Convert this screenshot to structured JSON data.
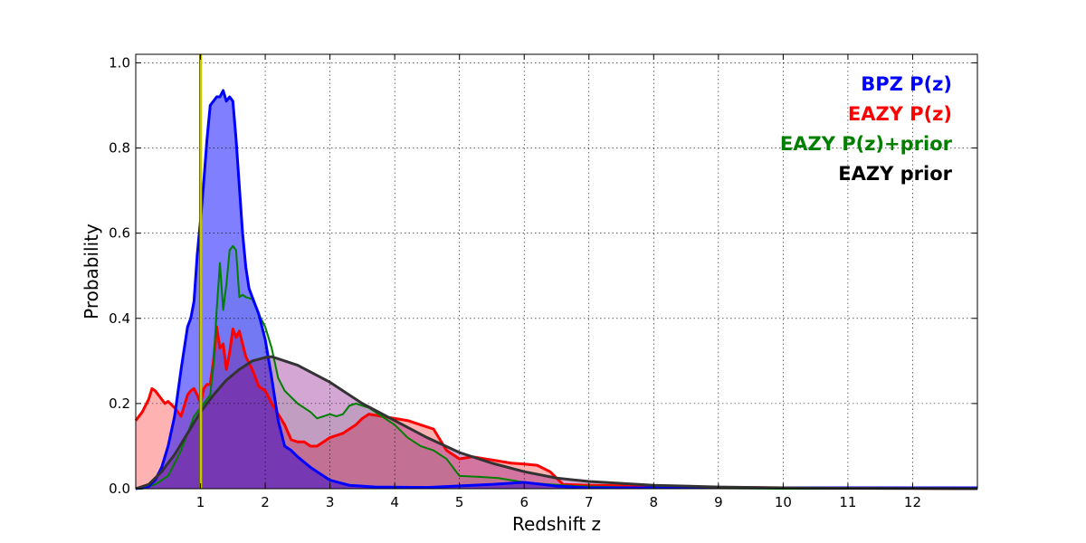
{
  "chart_data": {
    "type": "area",
    "xlabel": "Redshift z",
    "ylabel": "Probability",
    "xlim": [
      0,
      13
    ],
    "ylim": [
      0,
      1.02
    ],
    "xticks": [
      1,
      2,
      3,
      4,
      5,
      6,
      7,
      8,
      9,
      10,
      11,
      12
    ],
    "yticks": [
      0.0,
      0.2,
      0.4,
      0.6,
      0.8,
      1.0
    ],
    "ytick_labels": [
      "0.0",
      "0.2",
      "0.4",
      "0.6",
      "0.8",
      "1.0"
    ],
    "grid": true,
    "legend_placement": "top-right",
    "vline": {
      "x": 1.0,
      "color": "#c8c800"
    },
    "series": [
      {
        "name": "BPZ P(z)",
        "color": "#0000ff",
        "fill": "rgba(0,0,255,0.5)",
        "x": [
          0,
          0.2,
          0.3,
          0.4,
          0.5,
          0.6,
          0.7,
          0.8,
          0.85,
          0.9,
          0.95,
          1.0,
          1.05,
          1.1,
          1.15,
          1.2,
          1.25,
          1.3,
          1.35,
          1.4,
          1.45,
          1.5,
          1.55,
          1.6,
          1.65,
          1.7,
          1.75,
          1.8,
          1.9,
          2.0,
          2.1,
          2.2,
          2.3,
          2.4,
          2.5,
          2.7,
          3.0,
          3.3,
          3.7,
          4.5,
          5.5,
          6.0,
          6.5,
          7.0,
          9.0,
          12.0,
          13.0
        ],
        "y": [
          0.0,
          0.005,
          0.02,
          0.05,
          0.1,
          0.17,
          0.28,
          0.38,
          0.4,
          0.44,
          0.55,
          0.63,
          0.72,
          0.82,
          0.9,
          0.91,
          0.92,
          0.92,
          0.935,
          0.91,
          0.92,
          0.91,
          0.82,
          0.71,
          0.6,
          0.52,
          0.47,
          0.45,
          0.41,
          0.35,
          0.26,
          0.16,
          0.1,
          0.09,
          0.075,
          0.05,
          0.02,
          0.008,
          0.004,
          0.003,
          0.01,
          0.015,
          0.006,
          0.002,
          0.002,
          0.002,
          0.002
        ]
      },
      {
        "name": "EAZY P(z)",
        "color": "#ff0000",
        "fill": "rgba(255,0,0,0.3)",
        "x": [
          0,
          0.1,
          0.2,
          0.25,
          0.3,
          0.35,
          0.45,
          0.5,
          0.6,
          0.7,
          0.8,
          0.85,
          0.9,
          0.95,
          1.0,
          1.05,
          1.1,
          1.15,
          1.2,
          1.25,
          1.3,
          1.35,
          1.4,
          1.45,
          1.5,
          1.55,
          1.6,
          1.7,
          1.8,
          1.9,
          2.0,
          2.1,
          2.2,
          2.3,
          2.4,
          2.5,
          2.6,
          2.7,
          2.8,
          2.9,
          3.0,
          3.2,
          3.4,
          3.5,
          3.6,
          3.8,
          4.0,
          4.2,
          4.4,
          4.6,
          4.8,
          5.0,
          5.2,
          5.4,
          5.6,
          5.8,
          6.0,
          6.2,
          6.4,
          6.6,
          6.8,
          7.0,
          8.0,
          9.0,
          10.0,
          11.0,
          12.0,
          13.0
        ],
        "y": [
          0.16,
          0.18,
          0.21,
          0.235,
          0.23,
          0.22,
          0.2,
          0.205,
          0.19,
          0.17,
          0.22,
          0.23,
          0.235,
          0.22,
          0.2,
          0.235,
          0.245,
          0.245,
          0.3,
          0.38,
          0.33,
          0.34,
          0.28,
          0.32,
          0.375,
          0.355,
          0.37,
          0.31,
          0.28,
          0.24,
          0.23,
          0.2,
          0.175,
          0.15,
          0.115,
          0.11,
          0.11,
          0.1,
          0.1,
          0.11,
          0.12,
          0.13,
          0.15,
          0.165,
          0.175,
          0.17,
          0.165,
          0.16,
          0.15,
          0.14,
          0.09,
          0.07,
          0.075,
          0.07,
          0.065,
          0.06,
          0.058,
          0.055,
          0.04,
          0.01,
          0.009,
          0.008,
          0.006,
          0.003,
          0.002,
          0.001,
          0.001,
          0.0
        ]
      },
      {
        "name": "EAZY P(z)+prior",
        "color": "#007f00",
        "fill": "rgba(0,128,0,0.1)",
        "x": [
          0,
          0.1,
          0.3,
          0.5,
          0.6,
          0.7,
          0.8,
          0.9,
          1.0,
          1.05,
          1.1,
          1.15,
          1.2,
          1.25,
          1.3,
          1.35,
          1.4,
          1.45,
          1.5,
          1.55,
          1.6,
          1.65,
          1.7,
          1.8,
          1.9,
          2.0,
          2.1,
          2.2,
          2.3,
          2.5,
          2.7,
          2.8,
          2.9,
          3.0,
          3.1,
          3.2,
          3.3,
          3.4,
          3.5,
          3.6,
          3.8,
          4.0,
          4.2,
          4.4,
          4.6,
          4.8,
          5.0,
          5.3,
          5.6,
          6.0,
          6.4,
          6.8,
          7.0,
          8.0,
          9.0,
          10.0,
          12.0,
          13.0
        ],
        "y": [
          0.0,
          0.0,
          0.01,
          0.03,
          0.06,
          0.09,
          0.13,
          0.17,
          0.19,
          0.2,
          0.21,
          0.22,
          0.29,
          0.42,
          0.53,
          0.42,
          0.48,
          0.56,
          0.57,
          0.56,
          0.45,
          0.455,
          0.45,
          0.445,
          0.41,
          0.38,
          0.33,
          0.26,
          0.23,
          0.2,
          0.18,
          0.165,
          0.17,
          0.175,
          0.17,
          0.175,
          0.195,
          0.2,
          0.195,
          0.19,
          0.17,
          0.15,
          0.12,
          0.1,
          0.09,
          0.07,
          0.03,
          0.028,
          0.025,
          0.015,
          0.01,
          0.006,
          0.005,
          0.002,
          0.001,
          0.0,
          0.0,
          0.0
        ]
      },
      {
        "name": "EAZY prior",
        "color": "#333333",
        "fill": "rgba(128,0,128,0.35)",
        "x": [
          0,
          0.2,
          0.4,
          0.6,
          0.8,
          1.0,
          1.2,
          1.4,
          1.6,
          1.8,
          2.0,
          2.1,
          2.2,
          2.5,
          3.0,
          3.5,
          4.0,
          4.5,
          5.0,
          5.5,
          6.0,
          6.5,
          7.0,
          8.0,
          9.0,
          10.0,
          11.0,
          12.0,
          13.0
        ],
        "y": [
          0.0,
          0.01,
          0.04,
          0.08,
          0.13,
          0.18,
          0.22,
          0.255,
          0.28,
          0.3,
          0.308,
          0.31,
          0.305,
          0.29,
          0.25,
          0.2,
          0.16,
          0.12,
          0.085,
          0.06,
          0.04,
          0.025,
          0.017,
          0.008,
          0.004,
          0.002,
          0.001,
          0.0005,
          0.0
        ]
      }
    ]
  }
}
